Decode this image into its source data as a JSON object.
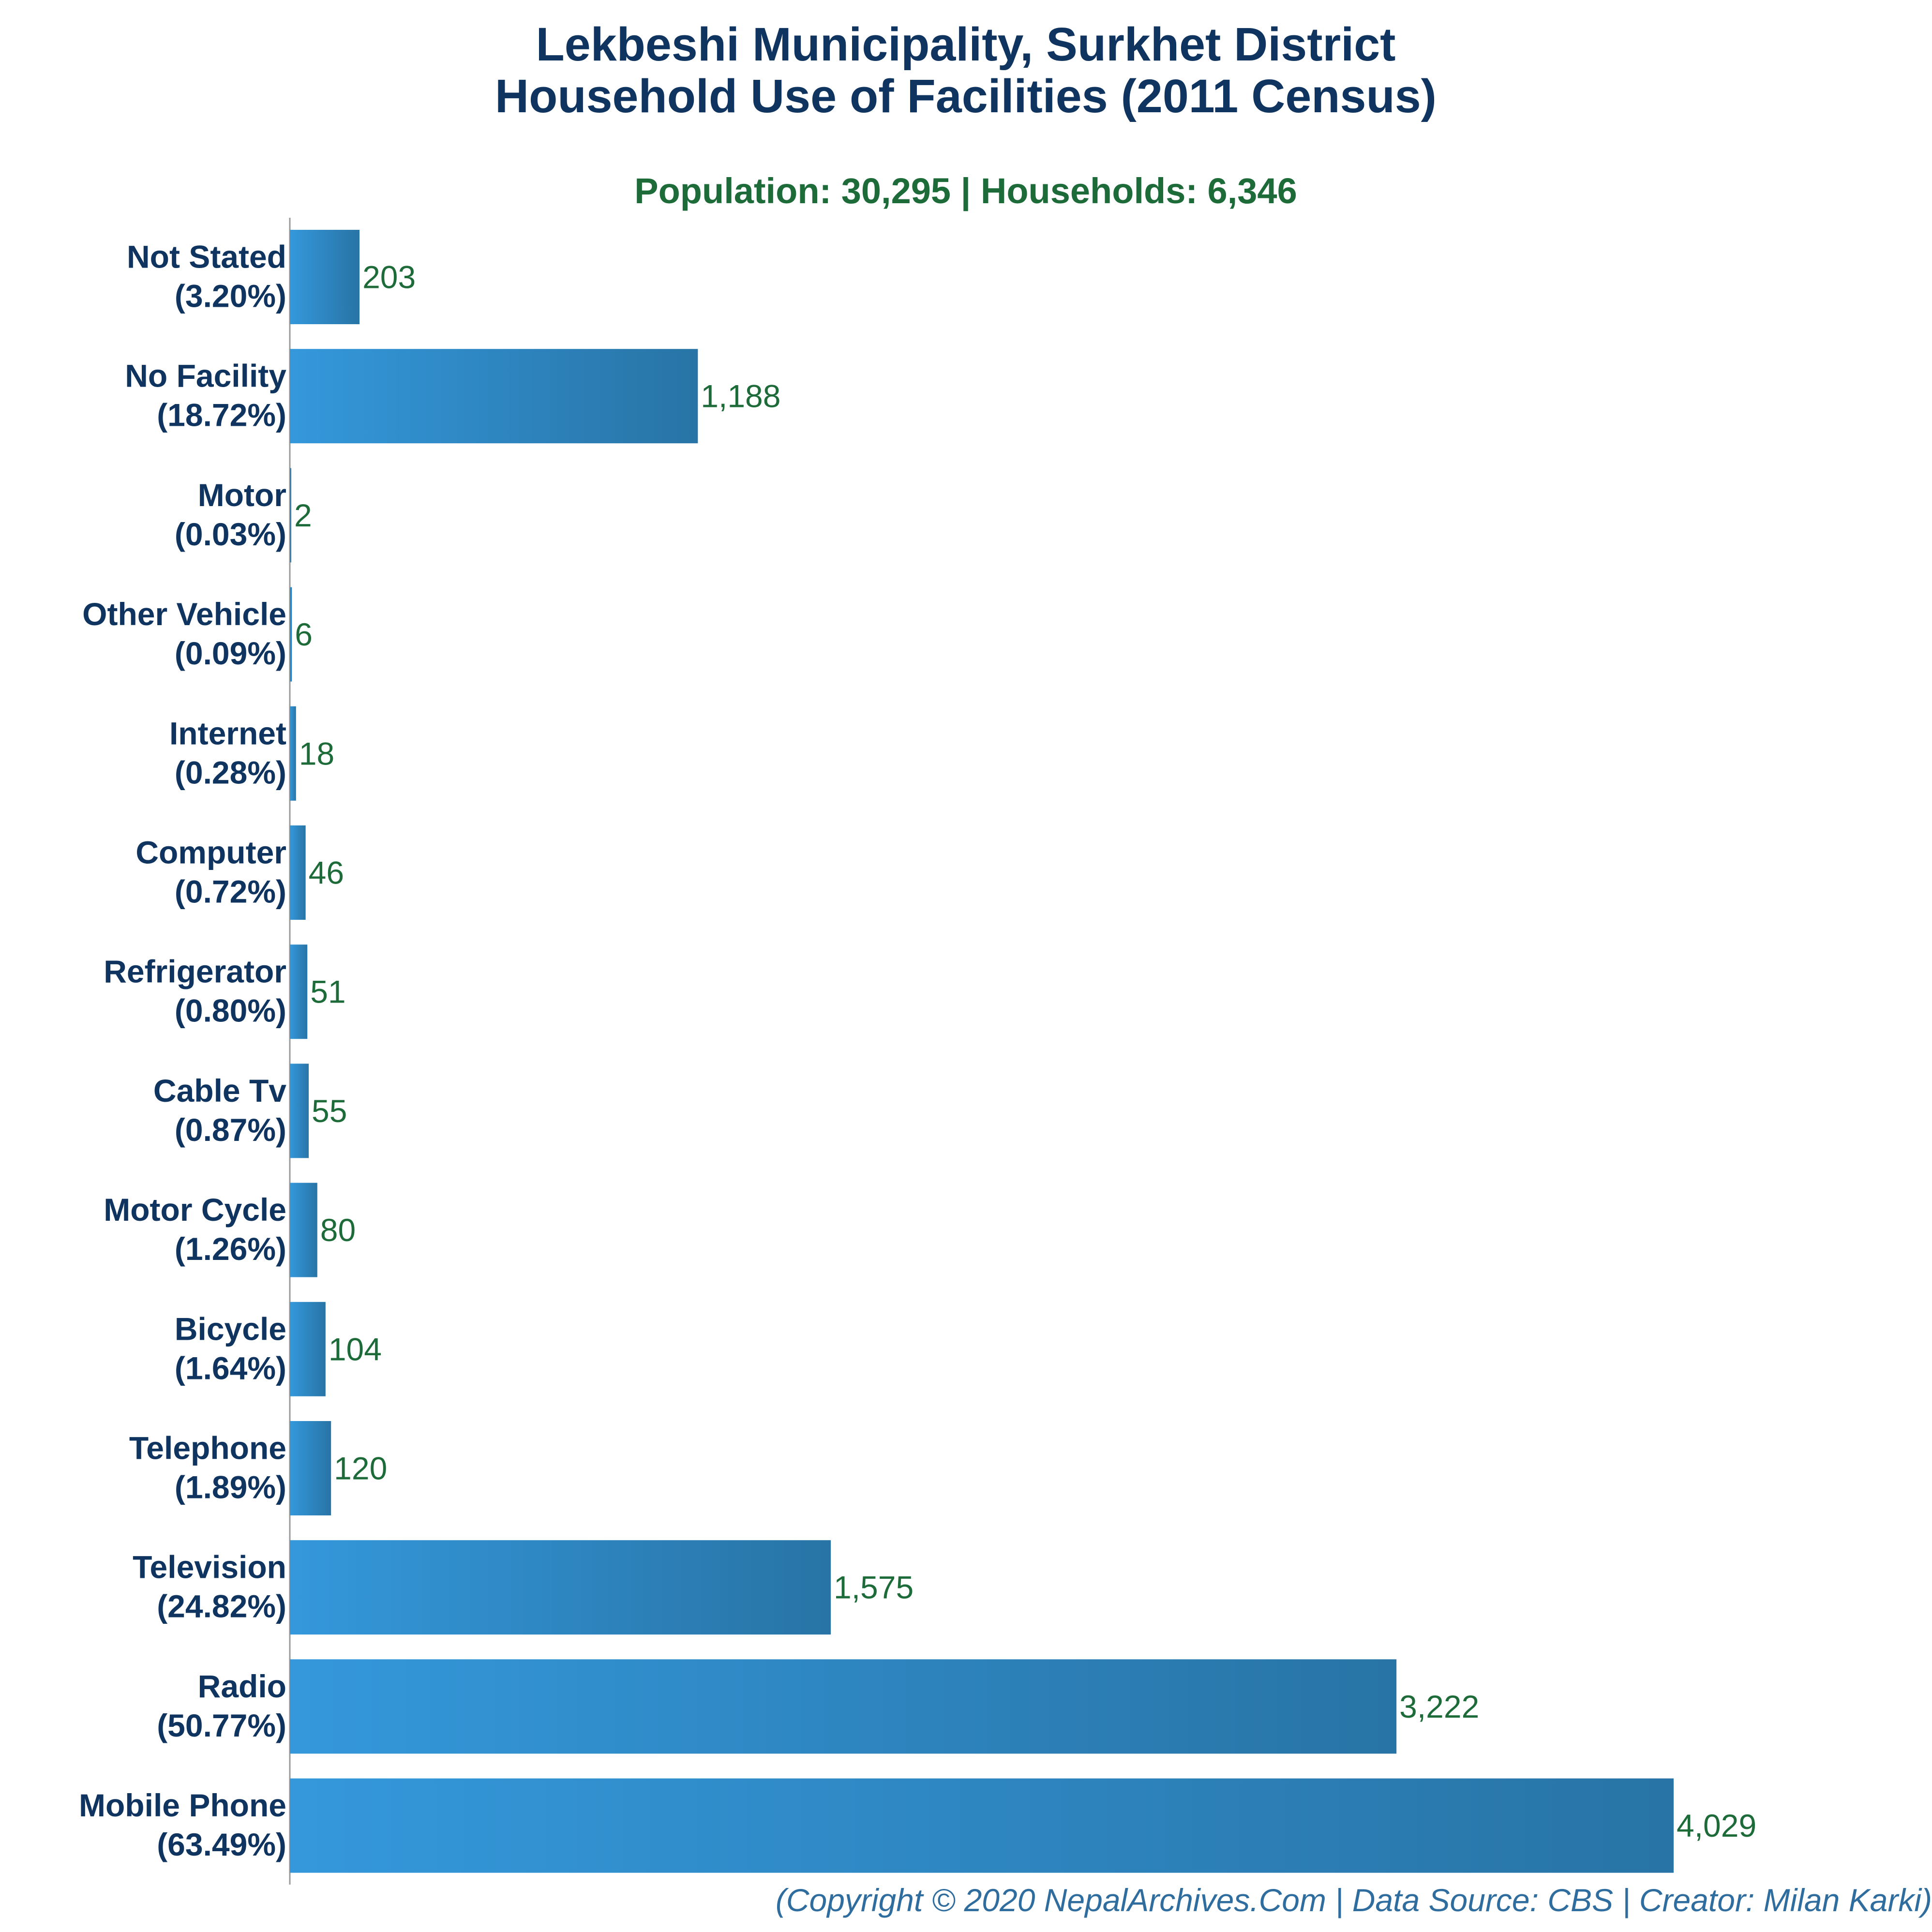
{
  "chart_data": {
    "type": "bar",
    "orientation": "horizontal",
    "title_line1": "Lekbeshi Municipality, Surkhet District",
    "title_line2": "Household Use of Facilities (2011 Census)",
    "subtitle": "Population: 30,295 | Households: 6,346",
    "footer": "(Copyright © 2020 NepalArchives.Com | Data Source: CBS | Creator: Milan Karki)",
    "categories": [
      "Not Stated",
      "No Facility",
      "Motor",
      "Other Vehicle",
      "Internet",
      "Computer",
      "Refrigerator",
      "Cable Tv",
      "Motor Cycle",
      "Bicycle",
      "Telephone",
      "Television",
      "Radio",
      "Mobile Phone"
    ],
    "percent_labels": [
      "(3.20%)",
      "(18.72%)",
      "(0.03%)",
      "(0.09%)",
      "(0.28%)",
      "(0.72%)",
      "(0.80%)",
      "(0.87%)",
      "(1.26%)",
      "(1.64%)",
      "(1.89%)",
      "(24.82%)",
      "(50.77%)",
      "(63.49%)"
    ],
    "values": [
      203,
      1188,
      2,
      6,
      18,
      46,
      51,
      55,
      80,
      104,
      120,
      1575,
      3222,
      4029
    ],
    "value_labels": [
      "203",
      "1,188",
      "2",
      "6",
      "18",
      "46",
      "51",
      "55",
      "80",
      "104",
      "120",
      "1,575",
      "3,222",
      "4,029"
    ],
    "grid": false,
    "colors": {
      "bar_start": "#3498db",
      "bar_end": "#2874a6",
      "title": "#0f3460",
      "subtitle": "#1e6b3a",
      "value": "#1e6b3a",
      "footer": "#2f6d9e"
    }
  }
}
